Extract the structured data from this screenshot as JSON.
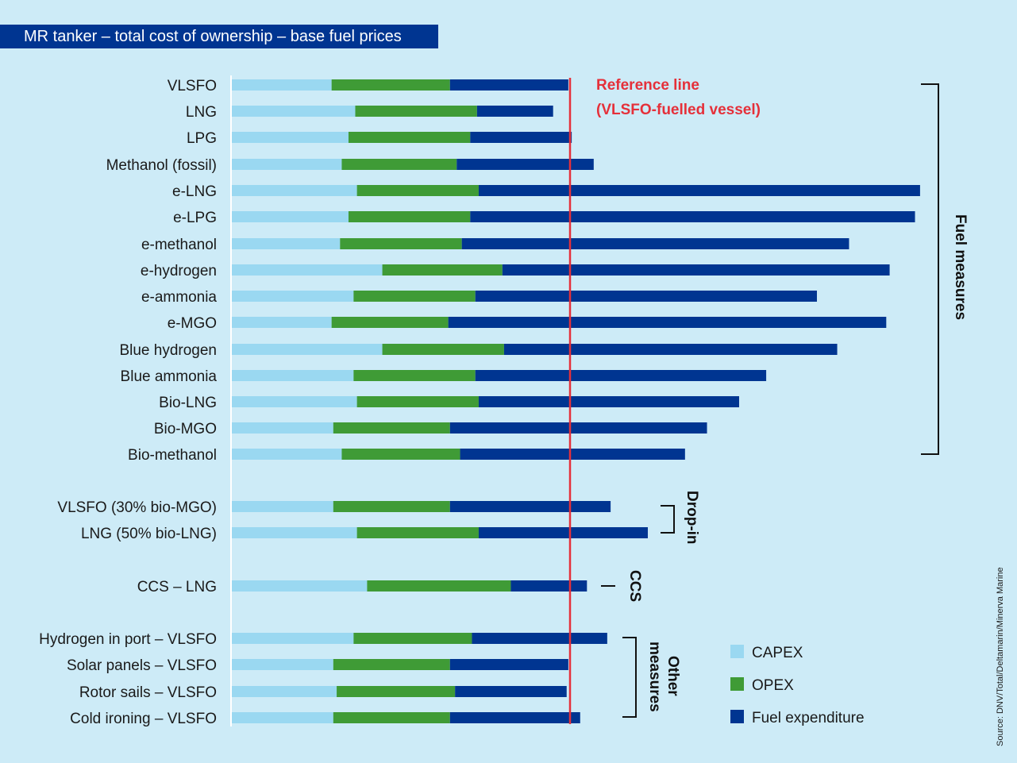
{
  "title": "MR tanker – total cost of ownership – base fuel prices",
  "chart_data": {
    "type": "bar",
    "orientation": "horizontal",
    "stacked": true,
    "title": "MR tanker – total cost of ownership – base fuel prices",
    "units_note": "Relative scale (VLSFO-fuelled vessel total = 100); no axis ticks shown",
    "categories": [
      "VLSFO",
      "LNG",
      "LPG",
      "Methanol (fossil)",
      "e-LNG",
      "e-LPG",
      "e-methanol",
      "e-hydrogen",
      "e-ammonia",
      "e-MGO",
      "Blue hydrogen",
      "Blue ammonia",
      "Bio-LNG",
      "Bio-MGO",
      "Bio-methanol",
      "VLSFO (30% bio-MGO)",
      "LNG (50% bio-LNG)",
      "CCS – LNG",
      "Hydrogen in port – VLSFO",
      "Solar panels – VLSFO",
      "Rotor sails – VLSFO",
      "Cold ironing – VLSFO"
    ],
    "series": [
      {
        "name": "CAPEX",
        "color": "#9ad8f1",
        "values": [
          29.5,
          36.5,
          34.5,
          32.5,
          37,
          34.5,
          32,
          44.5,
          36,
          29.5,
          44.5,
          36,
          37,
          30,
          32.5,
          30,
          37,
          40,
          36,
          30,
          31,
          30
        ]
      },
      {
        "name": "OPEX",
        "color": "#3f9b36",
        "values": [
          35,
          36,
          36,
          34,
          36,
          36,
          36,
          35.5,
          36,
          34.5,
          36,
          36,
          36,
          34.5,
          35,
          34.5,
          36,
          42.5,
          35,
          34.5,
          35,
          34.5
        ]
      },
      {
        "name": "Fuel expenditure",
        "color": "#003591",
        "values": [
          35,
          22.5,
          30,
          40.5,
          130.5,
          131.5,
          114.5,
          114.5,
          101,
          129.5,
          98.5,
          86,
          77,
          76,
          66.5,
          47.5,
          50,
          22.5,
          40,
          35,
          33,
          38.5
        ]
      }
    ],
    "reference_line": {
      "value": 100,
      "label_line1": "Reference line",
      "label_line2": "(VLSFO-fuelled vessel)",
      "color": "#e5303a"
    },
    "groups": [
      {
        "label": "Fuel measures",
        "from": 0,
        "to": 14
      },
      {
        "label": "Drop-in",
        "from": 15,
        "to": 16
      },
      {
        "label": "CCS",
        "from": 17,
        "to": 17
      },
      {
        "label_line1": "Other",
        "label_line2": "measures",
        "from": 18,
        "to": 21
      }
    ],
    "legend": {
      "position": "bottom-right",
      "items": [
        "CAPEX",
        "OPEX",
        "Fuel expenditure"
      ]
    },
    "grid": false,
    "xlabel": "",
    "ylabel": ""
  },
  "source": "Source: DNV/Total/Deltamarin/Minerva Marine"
}
